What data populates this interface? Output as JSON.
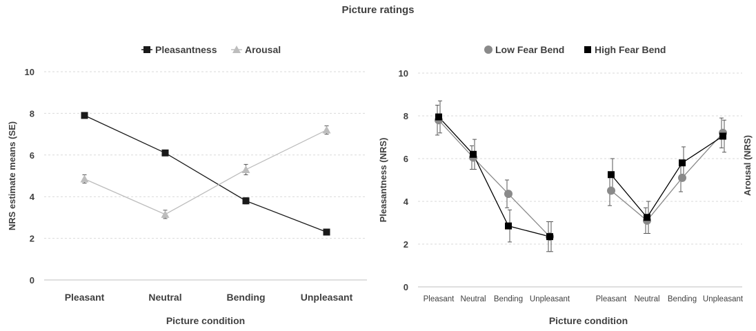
{
  "figure": {
    "title": "Picture ratings"
  },
  "chart_data": [
    {
      "type": "line",
      "categories": [
        "Pleasant",
        "Neutral",
        "Bending",
        "Unpleasant"
      ],
      "xlabel": "Picture condition",
      "ylabel": "NRS estimate means (SE)",
      "ylim": [
        0,
        10
      ],
      "yticks": [
        "0",
        "2",
        "4",
        "6",
        "8",
        "10"
      ],
      "grid": true,
      "legend": "top",
      "series": [
        {
          "name": "Pleasantness",
          "marker": "square",
          "color": "#1a1a1a",
          "values": [
            7.9,
            6.1,
            3.8,
            2.3
          ],
          "se": [
            0.1,
            0.12,
            0.15,
            0.1
          ]
        },
        {
          "name": "Arousal",
          "marker": "triangle",
          "color": "#bdbdbd",
          "values": [
            4.85,
            3.15,
            5.3,
            7.2
          ],
          "se": [
            0.2,
            0.2,
            0.25,
            0.2
          ]
        }
      ]
    },
    {
      "type": "line",
      "categories": [
        "Pleasant",
        "Neutral",
        "Bending",
        "Unpleasant"
      ],
      "xlabel": "Picture condition",
      "ylabel_left": "Pleasantness (NRS)",
      "ylabel_right": "Arousal (NRS)",
      "ylim": [
        0,
        10
      ],
      "yticks": [
        "0",
        "2",
        "4",
        "6",
        "8",
        "10"
      ],
      "grid": true,
      "legend": "top",
      "series": [
        {
          "name": "Low Fear Bend",
          "marker": "circle",
          "color": "#8a8a8a",
          "pleasantness": [
            7.8,
            6.05,
            4.35,
            2.35
          ],
          "pleasantness_err": [
            0.7,
            0.55,
            0.65,
            0.7
          ],
          "arousal": [
            4.5,
            3.1,
            5.1,
            7.2
          ],
          "arousal_err": [
            0.7,
            0.6,
            0.65,
            0.7
          ]
        },
        {
          "name": "High Fear Bend",
          "marker": "square",
          "color": "#000000",
          "pleasantness": [
            7.95,
            6.2,
            2.85,
            2.35
          ],
          "pleasantness_err": [
            0.75,
            0.7,
            0.75,
            0.7
          ],
          "arousal": [
            5.25,
            3.25,
            5.8,
            7.05
          ],
          "arousal_err": [
            0.75,
            0.75,
            0.75,
            0.75
          ]
        }
      ]
    }
  ]
}
